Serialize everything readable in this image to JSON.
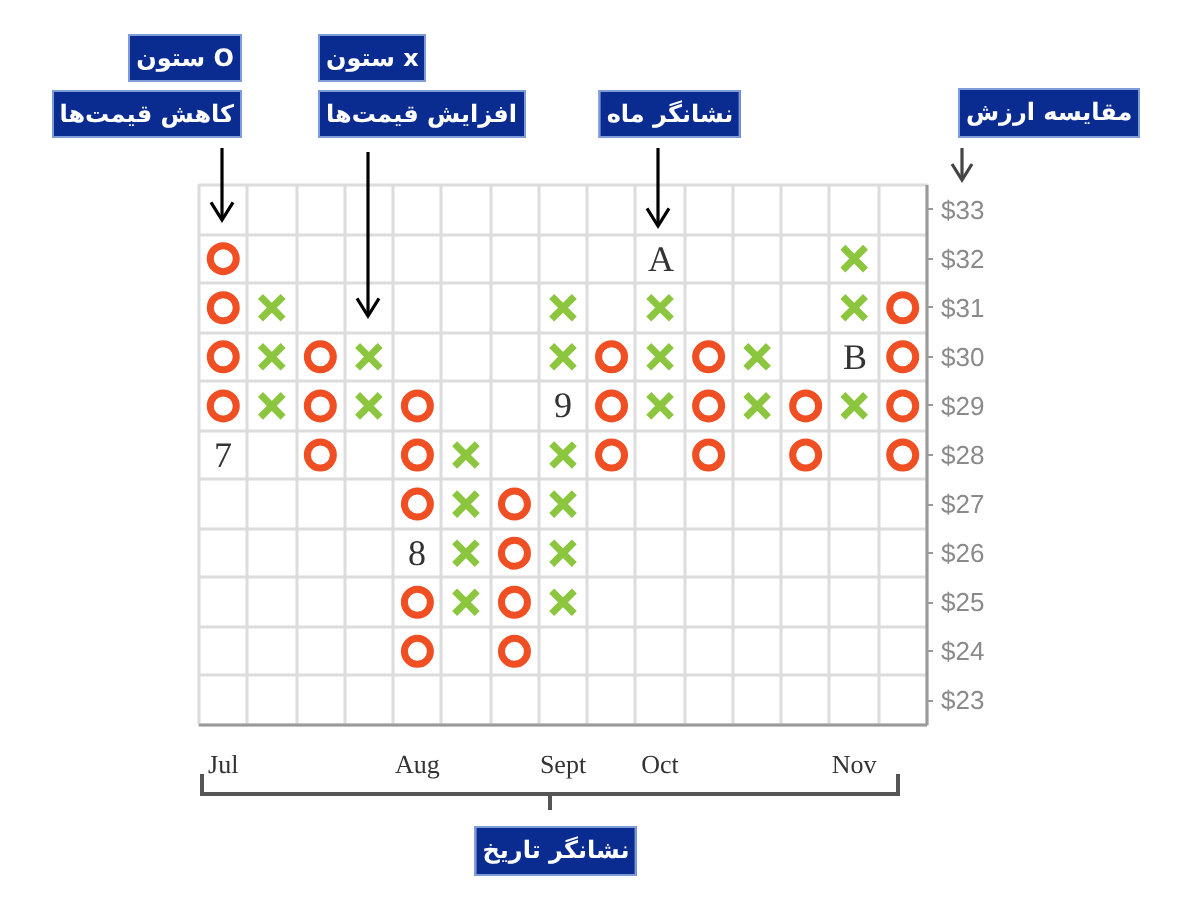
{
  "chart_data": {
    "type": "scatter",
    "xlabel": "نشانگر تاریخ",
    "ylabel": "مقایسه ارزش",
    "categories": [
      "Jul",
      null,
      null,
      null,
      "Aug",
      null,
      null,
      "Sept",
      null,
      "Oct",
      null,
      null,
      null,
      "Nov",
      null
    ],
    "ylim": [
      22.5,
      33.5
    ],
    "yticks": [
      {
        "value": 23,
        "label": "$23"
      },
      {
        "value": 24,
        "label": "$24"
      },
      {
        "value": 25,
        "label": "$25"
      },
      {
        "value": 26,
        "label": "$26"
      },
      {
        "value": 27,
        "label": "$27"
      },
      {
        "value": 28,
        "label": "$28"
      },
      {
        "value": 29,
        "label": "$29"
      },
      {
        "value": 30,
        "label": "$30"
      },
      {
        "value": 31,
        "label": "$31"
      },
      {
        "value": 32,
        "label": "$32"
      },
      {
        "value": 33,
        "label": "$33"
      }
    ],
    "grid": true,
    "series": [
      {
        "color": "#f04e23",
        "marker": "circle",
        "values": [
          32,
          null,
          30,
          null,
          29,
          null,
          27,
          null,
          30,
          null,
          30,
          null,
          29,
          null,
          31
        ]
      },
      {
        "color": "#f04e23",
        "marker": "circle",
        "values": [
          31,
          null,
          29,
          null,
          28,
          null,
          26,
          null,
          29,
          null,
          29,
          null,
          28,
          null,
          30
        ]
      },
      {
        "color": "#f04e23",
        "marker": "circle",
        "values": [
          30,
          null,
          28,
          null,
          27,
          null,
          25,
          null,
          28,
          null,
          28,
          null,
          null,
          null,
          29
        ]
      },
      {
        "color": "#f04e23",
        "marker": "circle",
        "values": [
          29,
          null,
          null,
          null,
          25,
          null,
          24,
          null,
          null,
          null,
          null,
          null,
          null,
          null,
          28
        ]
      },
      {
        "color": "#f04e23",
        "marker": "circle",
        "values": [
          null,
          null,
          null,
          null,
          24,
          null,
          null,
          null,
          null,
          null,
          null,
          null,
          null,
          null,
          null
        ]
      },
      {
        "color": "#8cc63f",
        "marker": "cross",
        "values": [
          null,
          31,
          null,
          30,
          null,
          28,
          null,
          31,
          null,
          31,
          null,
          30,
          null,
          32,
          null
        ]
      },
      {
        "color": "#8cc63f",
        "marker": "cross",
        "values": [
          null,
          30,
          null,
          29,
          null,
          27,
          null,
          30,
          null,
          30,
          null,
          29,
          null,
          31,
          null
        ]
      },
      {
        "color": "#8cc63f",
        "marker": "cross",
        "values": [
          null,
          29,
          null,
          null,
          null,
          26,
          null,
          28,
          null,
          29,
          null,
          null,
          null,
          29,
          null
        ]
      },
      {
        "color": "#8cc63f",
        "marker": "cross",
        "values": [
          null,
          null,
          null,
          null,
          null,
          25,
          null,
          27,
          null,
          null,
          null,
          null,
          null,
          null,
          null
        ]
      },
      {
        "color": "#8cc63f",
        "marker": "cross",
        "values": [
          null,
          null,
          null,
          null,
          null,
          null,
          null,
          26,
          null,
          null,
          null,
          null,
          null,
          null,
          null
        ]
      },
      {
        "color": "#8cc63f",
        "marker": "cross",
        "values": [
          null,
          null,
          null,
          null,
          null,
          null,
          null,
          25,
          null,
          null,
          null,
          null,
          null,
          null,
          null
        ]
      }
    ],
    "annotations": [
      "ستون O\nکاهش قیمت‌ها",
      "ستون x\nافزایش قیمت‌ها",
      "نشانگر ماه",
      "7",
      "8",
      "9",
      "A",
      "B"
    ]
  }
}
